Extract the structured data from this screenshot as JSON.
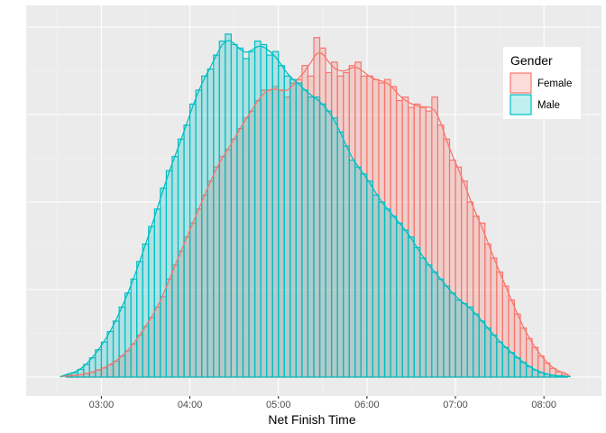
{
  "chart_data": {
    "type": "histogram",
    "xlabel": "Net Finish Time",
    "ylabel": "",
    "x_tick_labels": [
      "03:00",
      "04:00",
      "05:00",
      "06:00",
      "07:00",
      "08:00"
    ],
    "x_tick_values_hours": [
      3,
      4,
      5,
      6,
      7,
      8
    ],
    "xlim_hours": [
      2.15,
      8.65
    ],
    "bin_width_minutes": 4,
    "bin_start_hours": [
      2.6,
      2.6667,
      2.7333,
      2.8,
      2.8667,
      2.9333,
      3.0,
      3.0667,
      3.1333,
      3.2,
      3.2667,
      3.3333,
      3.4,
      3.4667,
      3.5333,
      3.6,
      3.6667,
      3.7333,
      3.8,
      3.8667,
      3.9333,
      4.0,
      4.0667,
      4.1333,
      4.2,
      4.2667,
      4.3333,
      4.4,
      4.4667,
      4.5333,
      4.6,
      4.6667,
      4.7333,
      4.8,
      4.8667,
      4.9333,
      5.0,
      5.0667,
      5.1333,
      5.2,
      5.2667,
      5.3333,
      5.4,
      5.4667,
      5.5333,
      5.6,
      5.6667,
      5.7333,
      5.8,
      5.8667,
      5.9333,
      6.0,
      6.0667,
      6.1333,
      6.2,
      6.2667,
      6.3333,
      6.4,
      6.4667,
      6.5333,
      6.6,
      6.6667,
      6.7333,
      6.8,
      6.8667,
      6.9333,
      7.0,
      7.0667,
      7.1333,
      7.2,
      7.2667,
      7.3333,
      7.4,
      7.4667,
      7.5333,
      7.6,
      7.6667,
      7.7333,
      7.8,
      7.8667,
      7.9333,
      8.0,
      8.0667,
      8.1333,
      8.2
    ],
    "ylim": [
      0,
      1.0
    ],
    "y_scale_note": "relative density (axis unlabeled)",
    "grid": true,
    "legend": {
      "title": "Gender",
      "position": "right",
      "entries": [
        "Female",
        "Male"
      ]
    },
    "series": [
      {
        "name": "Female",
        "color": "#F8766D",
        "fill": "#F8766D",
        "fill_opacity": 0.25,
        "values": [
          0.003,
          0.004,
          0.007,
          0.01,
          0.014,
          0.02,
          0.026,
          0.035,
          0.045,
          0.06,
          0.075,
          0.095,
          0.12,
          0.145,
          0.17,
          0.2,
          0.23,
          0.28,
          0.32,
          0.36,
          0.4,
          0.44,
          0.48,
          0.52,
          0.56,
          0.6,
          0.63,
          0.65,
          0.68,
          0.71,
          0.74,
          0.76,
          0.79,
          0.82,
          0.82,
          0.83,
          0.82,
          0.8,
          0.84,
          0.85,
          0.89,
          0.86,
          0.97,
          0.94,
          0.87,
          0.9,
          0.86,
          0.87,
          0.89,
          0.9,
          0.86,
          0.86,
          0.85,
          0.84,
          0.85,
          0.83,
          0.79,
          0.8,
          0.77,
          0.78,
          0.77,
          0.76,
          0.8,
          0.72,
          0.68,
          0.62,
          0.6,
          0.56,
          0.5,
          0.46,
          0.44,
          0.38,
          0.34,
          0.3,
          0.26,
          0.22,
          0.18,
          0.14,
          0.11,
          0.085,
          0.06,
          0.04,
          0.025,
          0.015,
          0.008
        ]
      },
      {
        "name": "Male",
        "color": "#00BFC4",
        "fill": "#00BFC4",
        "fill_opacity": 0.25,
        "values": [
          0.006,
          0.012,
          0.022,
          0.036,
          0.055,
          0.078,
          0.1,
          0.13,
          0.16,
          0.2,
          0.24,
          0.28,
          0.33,
          0.38,
          0.43,
          0.48,
          0.54,
          0.59,
          0.63,
          0.68,
          0.72,
          0.78,
          0.82,
          0.86,
          0.88,
          0.92,
          0.96,
          0.98,
          0.95,
          0.94,
          0.91,
          0.93,
          0.96,
          0.95,
          0.92,
          0.93,
          0.89,
          0.86,
          0.85,
          0.84,
          0.82,
          0.8,
          0.8,
          0.78,
          0.76,
          0.74,
          0.7,
          0.66,
          0.62,
          0.6,
          0.58,
          0.56,
          0.52,
          0.5,
          0.48,
          0.46,
          0.44,
          0.42,
          0.4,
          0.37,
          0.34,
          0.32,
          0.3,
          0.28,
          0.26,
          0.24,
          0.22,
          0.21,
          0.2,
          0.18,
          0.16,
          0.14,
          0.12,
          0.1,
          0.085,
          0.07,
          0.055,
          0.042,
          0.03,
          0.02,
          0.013,
          0.008,
          0.005,
          0.003,
          0.002
        ]
      }
    ]
  }
}
